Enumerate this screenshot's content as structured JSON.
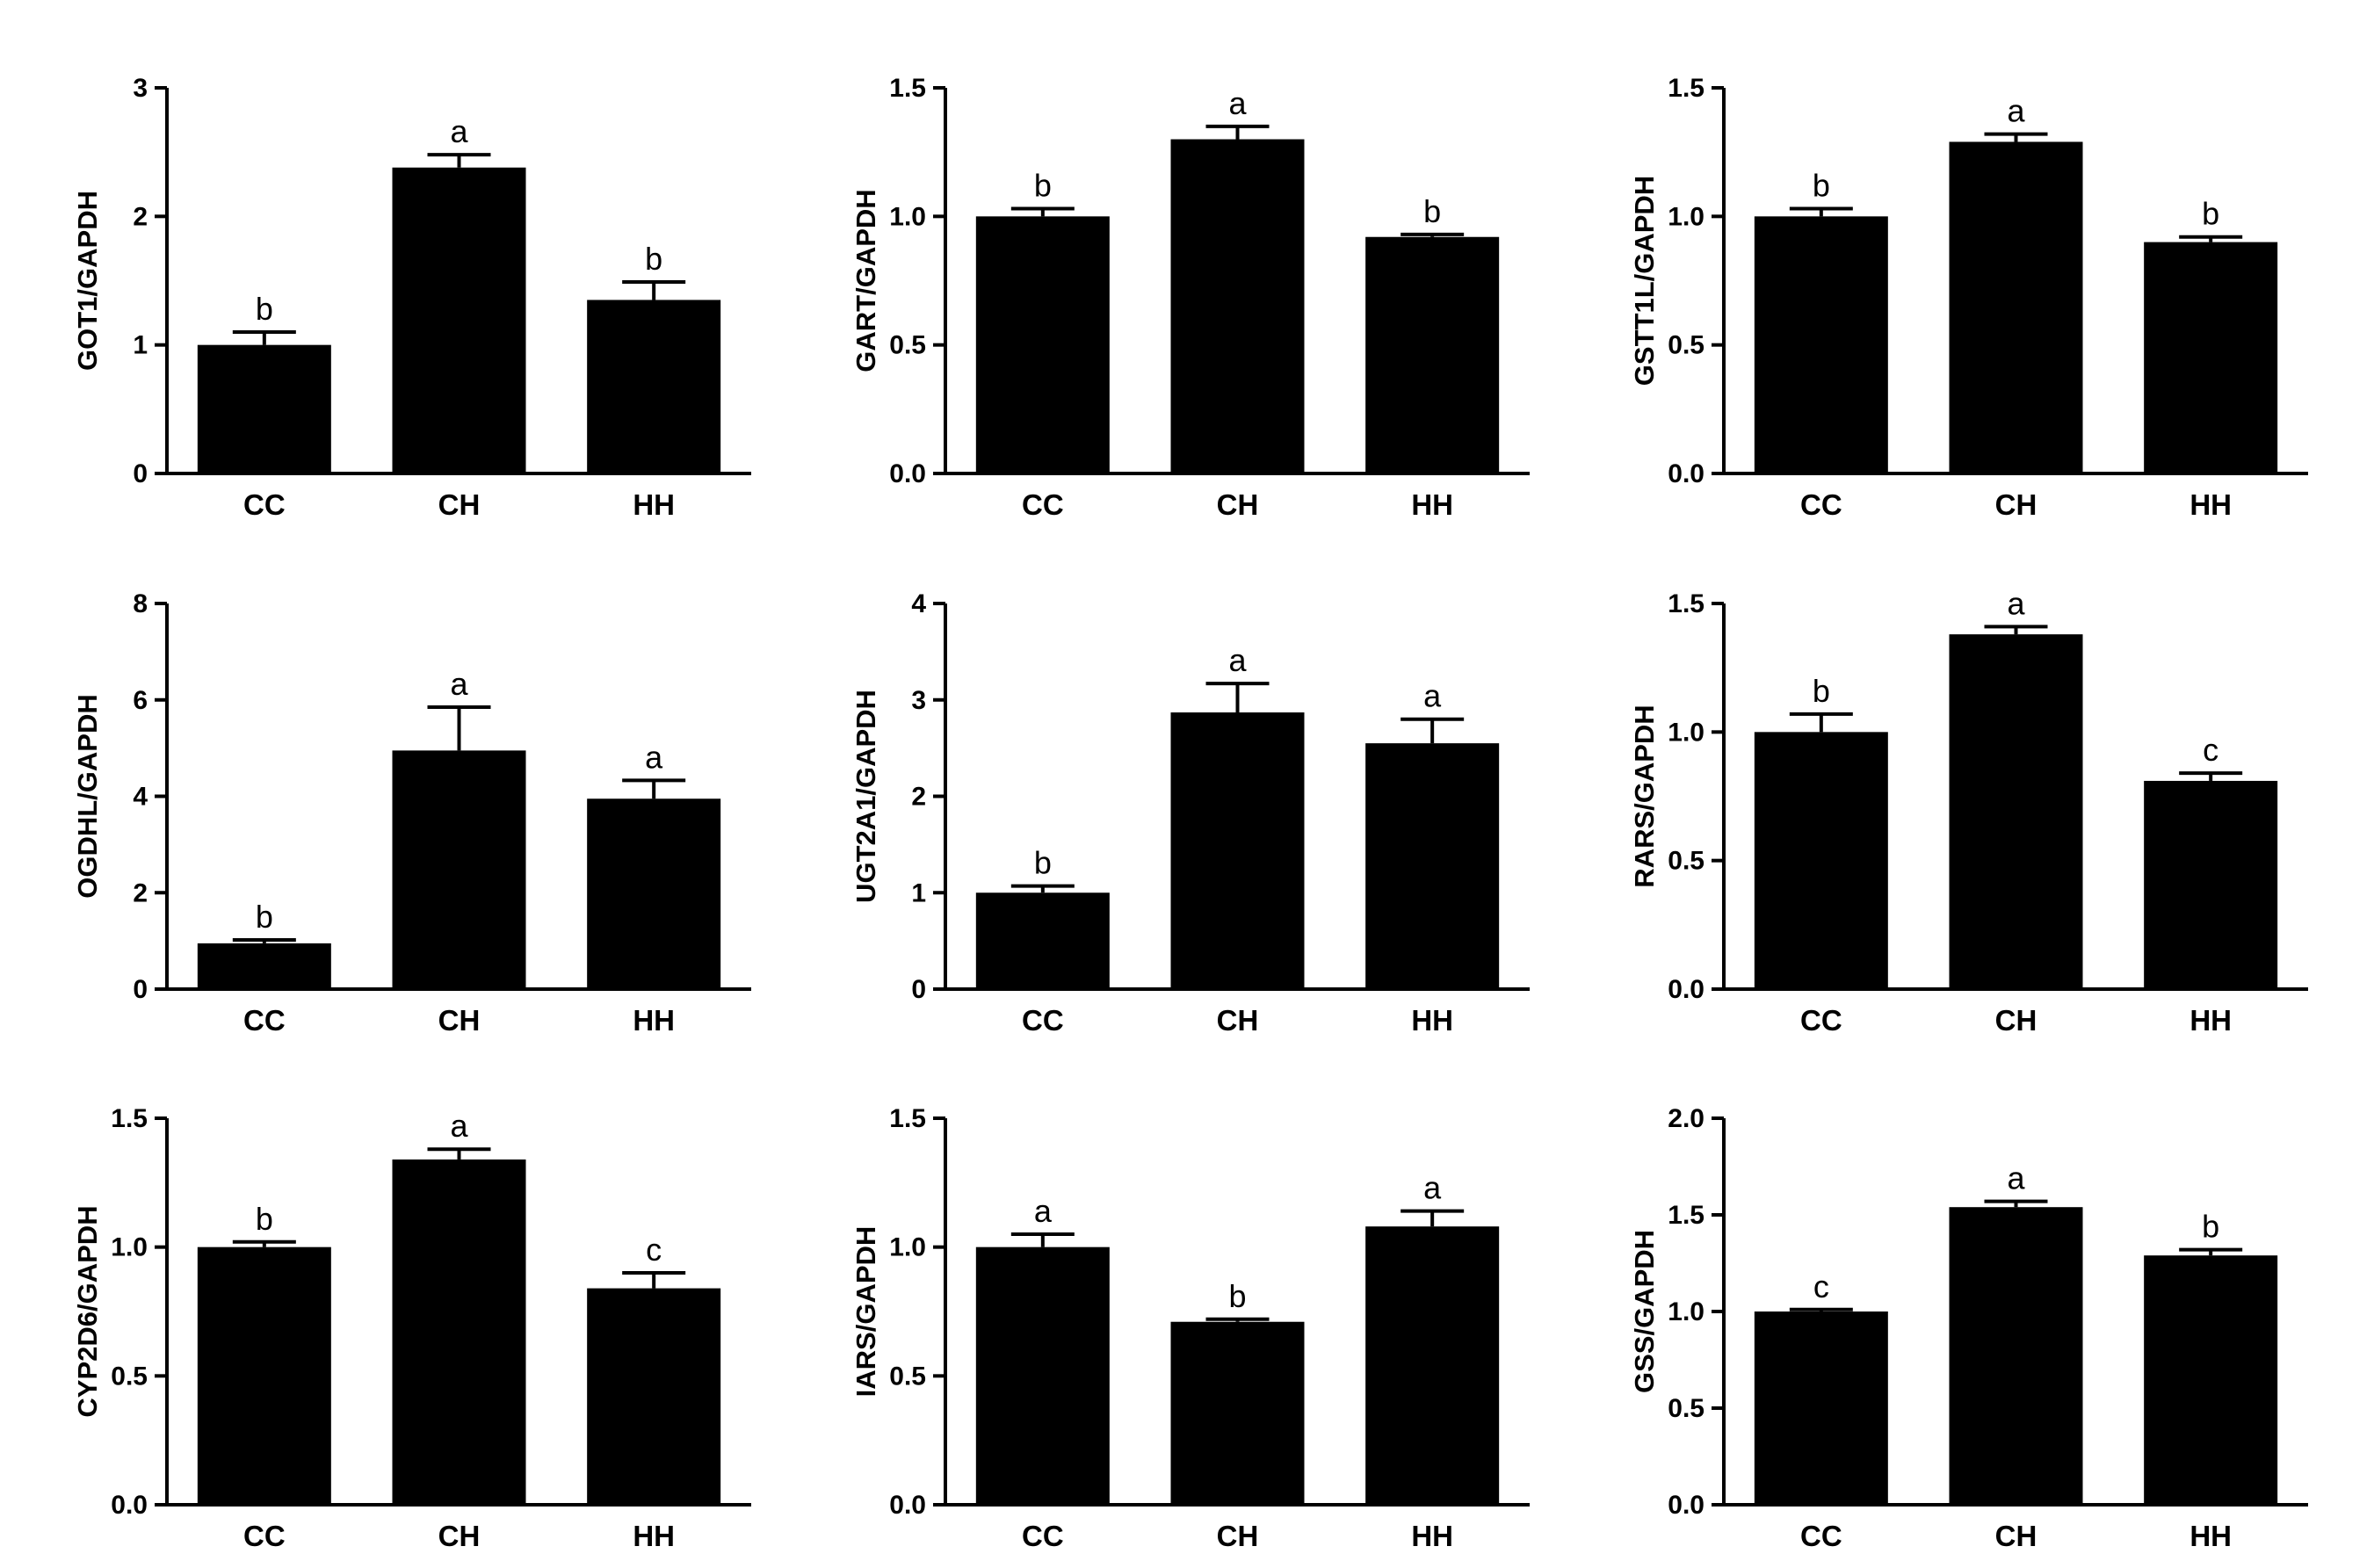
{
  "figure": {
    "colors": {
      "bar": "#000000",
      "axis": "#000000",
      "background": "#ffffff"
    }
  },
  "chart_data": [
    {
      "type": "bar",
      "title": "",
      "xlabel": "",
      "ylabel": "GOT1/GAPDH",
      "categories": [
        "CC",
        "CH",
        "HH"
      ],
      "values": [
        1.0,
        2.38,
        1.35
      ],
      "errors": [
        0.1,
        0.1,
        0.14
      ],
      "significance": [
        "b",
        "a",
        "b"
      ],
      "ylim": [
        0,
        3
      ],
      "yticks": [
        "0",
        "1",
        "2",
        "3"
      ],
      "grid": false,
      "legend": "none"
    },
    {
      "type": "bar",
      "title": "",
      "xlabel": "",
      "ylabel": "GART/GAPDH",
      "categories": [
        "CC",
        "CH",
        "HH"
      ],
      "values": [
        1.0,
        1.3,
        0.92
      ],
      "errors": [
        0.03,
        0.05,
        0.01
      ],
      "significance": [
        "b",
        "a",
        "b"
      ],
      "ylim": [
        0,
        1.5
      ],
      "yticks": [
        "0.0",
        "0.5",
        "1.0",
        "1.5"
      ],
      "grid": false,
      "legend": "none"
    },
    {
      "type": "bar",
      "title": "",
      "xlabel": "",
      "ylabel": "GSTT1L/GAPDH",
      "categories": [
        "CC",
        "CH",
        "HH"
      ],
      "values": [
        1.0,
        1.29,
        0.9
      ],
      "errors": [
        0.03,
        0.03,
        0.02
      ],
      "significance": [
        "b",
        "a",
        "b"
      ],
      "ylim": [
        0,
        1.5
      ],
      "yticks": [
        "0.0",
        "0.5",
        "1.0",
        "1.5"
      ],
      "grid": false,
      "legend": "none"
    },
    {
      "type": "bar",
      "title": "",
      "xlabel": "",
      "ylabel": "OGDHL/GAPDH",
      "categories": [
        "CC",
        "CH",
        "HH"
      ],
      "values": [
        0.95,
        4.95,
        3.95
      ],
      "errors": [
        0.07,
        0.9,
        0.38
      ],
      "significance": [
        "b",
        "a",
        "a"
      ],
      "ylim": [
        0,
        8
      ],
      "yticks": [
        "0",
        "2",
        "4",
        "6",
        "8"
      ],
      "grid": false,
      "legend": "none"
    },
    {
      "type": "bar",
      "title": "",
      "xlabel": "",
      "ylabel": "UGT2A1/GAPDH",
      "categories": [
        "CC",
        "CH",
        "HH"
      ],
      "values": [
        1.0,
        2.87,
        2.55
      ],
      "errors": [
        0.07,
        0.3,
        0.25
      ],
      "significance": [
        "b",
        "a",
        "a"
      ],
      "ylim": [
        0,
        4
      ],
      "yticks": [
        "0",
        "1",
        "2",
        "3",
        "4"
      ],
      "grid": false,
      "legend": "none"
    },
    {
      "type": "bar",
      "title": "",
      "xlabel": "",
      "ylabel": "RARS/GAPDH",
      "categories": [
        "CC",
        "CH",
        "HH"
      ],
      "values": [
        1.0,
        1.38,
        0.81
      ],
      "errors": [
        0.07,
        0.03,
        0.03
      ],
      "significance": [
        "b",
        "a",
        "c"
      ],
      "ylim": [
        0,
        1.5
      ],
      "yticks": [
        "0.0",
        "0.5",
        "1.0",
        "1.5"
      ],
      "grid": false,
      "legend": "none"
    },
    {
      "type": "bar",
      "title": "",
      "xlabel": "",
      "ylabel": "CYP2D6/GAPDH",
      "categories": [
        "CC",
        "CH",
        "HH"
      ],
      "values": [
        1.0,
        1.34,
        0.84
      ],
      "errors": [
        0.02,
        0.04,
        0.06
      ],
      "significance": [
        "b",
        "a",
        "c"
      ],
      "ylim": [
        0,
        1.5
      ],
      "yticks": [
        "0.0",
        "0.5",
        "1.0",
        "1.5"
      ],
      "grid": false,
      "legend": "none"
    },
    {
      "type": "bar",
      "title": "",
      "xlabel": "",
      "ylabel": "IARS/GAPDH",
      "categories": [
        "CC",
        "CH",
        "HH"
      ],
      "values": [
        1.0,
        0.71,
        1.08
      ],
      "errors": [
        0.05,
        0.01,
        0.06
      ],
      "significance": [
        "a",
        "b",
        "a"
      ],
      "ylim": [
        0,
        1.5
      ],
      "yticks": [
        "0.0",
        "0.5",
        "1.0",
        "1.5"
      ],
      "grid": false,
      "legend": "none"
    },
    {
      "type": "bar",
      "title": "",
      "xlabel": "",
      "ylabel": "GSS/GAPDH",
      "categories": [
        "CC",
        "CH",
        "HH"
      ],
      "values": [
        1.0,
        1.54,
        1.29
      ],
      "errors": [
        0.01,
        0.03,
        0.03
      ],
      "significance": [
        "c",
        "a",
        "b"
      ],
      "ylim": [
        0,
        2.0
      ],
      "yticks": [
        "0.0",
        "0.5",
        "1.0",
        "1.5",
        "2.0"
      ],
      "grid": false,
      "legend": "none"
    }
  ]
}
